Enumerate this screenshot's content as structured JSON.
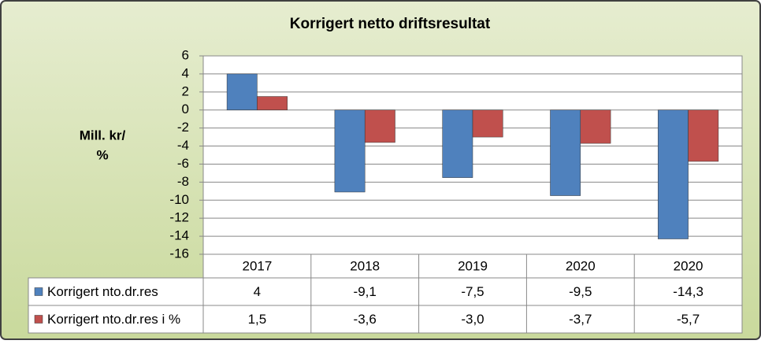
{
  "chart_data": {
    "type": "bar",
    "title": "Korrigert netto driftsresultat",
    "ylabel_lines": [
      "Mill. kr/",
      "%"
    ],
    "categories": [
      "2017",
      "2018",
      "2019",
      "2020",
      "2020"
    ],
    "series": [
      {
        "name": "Korrigert nto.dr.res",
        "color": "#4f81bd",
        "values": [
          4,
          -9.1,
          -7.5,
          -9.5,
          -14.3
        ],
        "value_labels": [
          "4",
          "-9,1",
          "-7,5",
          "-9,5",
          "-14,3"
        ]
      },
      {
        "name": "Korrigert nto.dr.res i %",
        "color": "#c0504d",
        "values": [
          1.5,
          -3.6,
          -3.0,
          -3.7,
          -5.7
        ],
        "value_labels": [
          "1,5",
          "-3,6",
          "-3,0",
          "-3,7",
          "-5,7"
        ]
      }
    ],
    "ylim": [
      -16,
      6
    ],
    "yticks": [
      -16,
      -14,
      -12,
      -10,
      -8,
      -6,
      -4,
      -2,
      0,
      2,
      4,
      6
    ],
    "grid": true
  }
}
